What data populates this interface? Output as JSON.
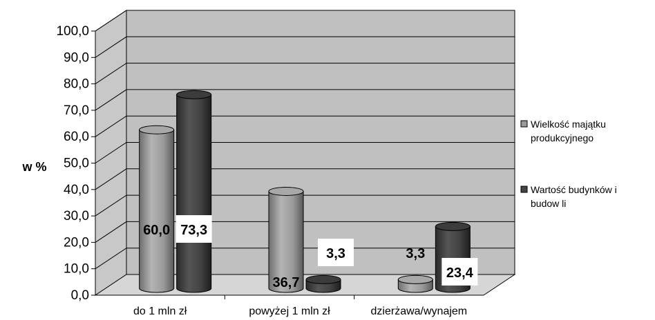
{
  "chart_data": {
    "type": "bar",
    "ylabel": "w %",
    "xlabel": "",
    "ylim": [
      0,
      100
    ],
    "y_ticks": [
      "0,0",
      "10,0",
      "20,0",
      "30,0",
      "40,0",
      "50,0",
      "60,0",
      "70,0",
      "80,0",
      "90,0",
      "100,0"
    ],
    "categories": [
      "do 1 mln zł",
      "powyżej 1 mln zł",
      "dzierżawa/wynajem"
    ],
    "series": [
      {
        "name": "Wielkość majątku produkcyjnego",
        "legend_lines": [
          "Wielkość majątku",
          "produkcyjnego"
        ],
        "values": [
          60.0,
          36.7,
          3.3
        ],
        "labels": [
          "60,0",
          "36,7",
          "3,3"
        ],
        "color": "#9a9a9a"
      },
      {
        "name": "Wartość budynków i budowli",
        "legend_lines": [
          "Wartość budynków  i",
          "budow li"
        ],
        "values": [
          73.3,
          3.3,
          23.4
        ],
        "labels": [
          "73,3",
          "3,3",
          "23,4"
        ],
        "color": "#454545"
      }
    ],
    "grid": true,
    "three_d": true,
    "legend_position": "right",
    "background_color": "#c0c0c0"
  }
}
